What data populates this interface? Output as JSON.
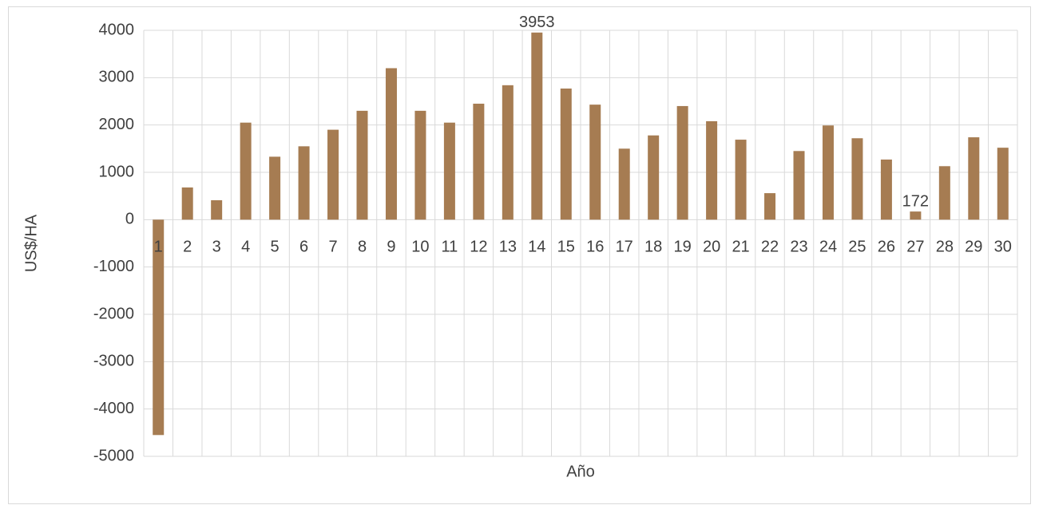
{
  "chart_data": {
    "type": "bar",
    "x_label": "Año",
    "y_label": "US$/HA",
    "categories": [
      "1",
      "2",
      "3",
      "4",
      "5",
      "6",
      "7",
      "8",
      "9",
      "10",
      "11",
      "12",
      "13",
      "14",
      "15",
      "16",
      "17",
      "18",
      "19",
      "20",
      "21",
      "22",
      "23",
      "24",
      "25",
      "26",
      "27",
      "28",
      "29",
      "30"
    ],
    "values": [
      -4550,
      680,
      410,
      2050,
      1330,
      1550,
      1900,
      2300,
      3200,
      2300,
      2050,
      2450,
      2840,
      3953,
      2770,
      2430,
      1500,
      1780,
      2400,
      2080,
      1690,
      560,
      1450,
      1990,
      1720,
      1270,
      172,
      1130,
      1740,
      1520
    ],
    "value_labels": [
      null,
      null,
      null,
      null,
      null,
      null,
      null,
      null,
      null,
      null,
      null,
      null,
      null,
      "3953",
      null,
      null,
      null,
      null,
      null,
      null,
      null,
      null,
      null,
      null,
      null,
      null,
      "172",
      null,
      null,
      null
    ],
    "color": "#a67c52",
    "ylim": [
      -5000,
      4000
    ],
    "yticks": [
      -5000,
      -4000,
      -3000,
      -2000,
      -1000,
      0,
      1000,
      2000,
      3000,
      4000
    ],
    "grid": true
  }
}
